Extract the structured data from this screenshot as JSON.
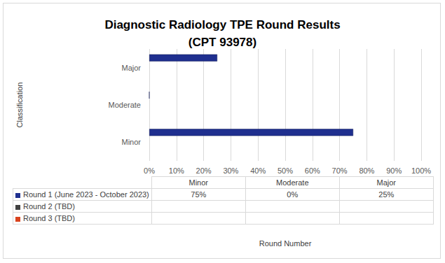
{
  "chart_data": {
    "type": "bar",
    "orientation": "horizontal",
    "title": "Diagnostic Radiology TPE Round Results",
    "subtitle": "(CPT 93978)",
    "x_label": "Round Number",
    "y_label": "Classification",
    "categories": [
      "Minor",
      "Moderate",
      "Major"
    ],
    "series": [
      {
        "name": "Round 1 (June 2023 - October 2023)",
        "color": "#1f2f8f",
        "values": [
          75,
          0,
          25
        ],
        "value_labels": [
          "75%",
          "0%",
          "25%"
        ]
      },
      {
        "name": "Round 2 (TBD)",
        "color": "#404040",
        "values": [
          null,
          null,
          null
        ],
        "value_labels": [
          null,
          null,
          null
        ]
      },
      {
        "name": "Round 3 (TBD)",
        "color": "#d9431e",
        "values": [
          null,
          null,
          null
        ],
        "value_labels": [
          null,
          null,
          null
        ]
      }
    ],
    "xlim": [
      0,
      100
    ],
    "xticks": [
      {
        "value": 0,
        "label": "0%"
      },
      {
        "value": 10,
        "label": "10%"
      },
      {
        "value": 20,
        "label": "20%"
      },
      {
        "value": 30,
        "label": "30%"
      },
      {
        "value": 40,
        "label": "40%"
      },
      {
        "value": 50,
        "label": "50%"
      },
      {
        "value": 60,
        "label": "60%"
      },
      {
        "value": 70,
        "label": "70%"
      },
      {
        "value": 80,
        "label": "80%"
      },
      {
        "value": 90,
        "label": "90%"
      },
      {
        "value": 100,
        "label": "100%"
      }
    ],
    "grid": true
  }
}
